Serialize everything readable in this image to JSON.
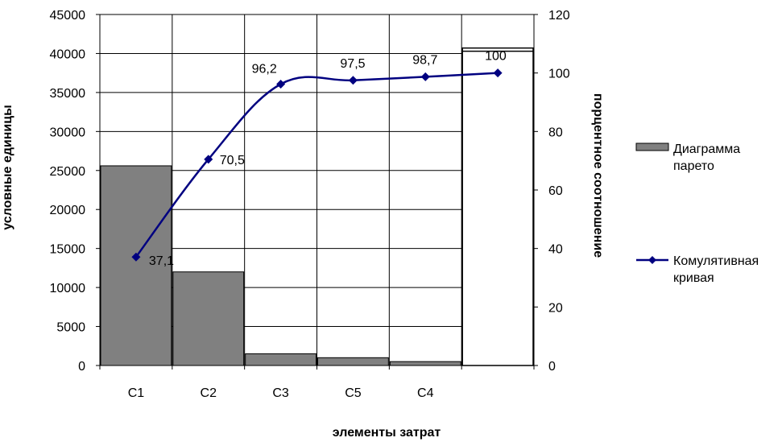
{
  "chart_data": {
    "type": "bar",
    "categories": [
      "C1",
      "C2",
      "C3",
      "C5",
      "C4",
      ""
    ],
    "series": [
      {
        "name": "Диаграмма парето",
        "type": "bar",
        "axis": "left",
        "values": [
          25600,
          12000,
          1500,
          1000,
          500,
          40700
        ],
        "color": "#808080"
      },
      {
        "name": "Комулятивная кривая",
        "type": "line",
        "axis": "right",
        "values": [
          37.1,
          70.5,
          96.2,
          97.5,
          98.7,
          100
        ],
        "labels": [
          "37,1",
          "70,5",
          "96,2",
          "97,5",
          "98,7",
          "100"
        ],
        "color": "#000080"
      }
    ],
    "xlabel": "элементы затрат",
    "ylabel": "условные единицы",
    "y2label": "порцентное соотношение",
    "ylim": [
      0,
      45000
    ],
    "y2lim": [
      0,
      120
    ],
    "yticks": [
      "0",
      "5000",
      "10000",
      "15000",
      "20000",
      "25000",
      "30000",
      "35000",
      "40000",
      "45000"
    ],
    "y2ticks": [
      "0",
      "20",
      "40",
      "60",
      "80",
      "100",
      "120"
    ],
    "grid": true,
    "legend": "right"
  }
}
